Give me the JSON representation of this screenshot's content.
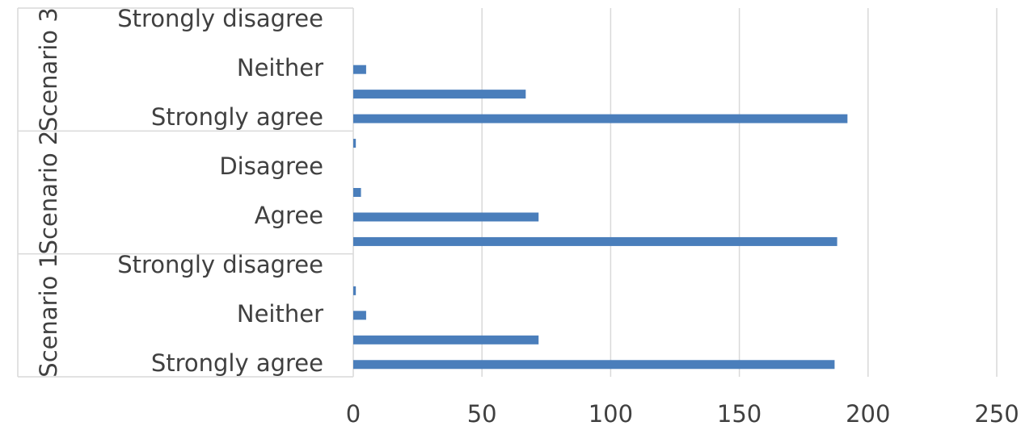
{
  "chart_data": {
    "type": "bar",
    "orientation": "horizontal",
    "groups": [
      "Scenario 3",
      "Scenario 2",
      "Scenario 1"
    ],
    "categories": [
      "Strongly disagree",
      null,
      "Neither",
      null,
      "Strongly agree",
      null,
      "Disagree",
      null,
      "Agree",
      null,
      "Strongly disagree",
      null,
      "Neither",
      null,
      "Strongly agree"
    ],
    "values": [
      0,
      0,
      5,
      67,
      192,
      1,
      0,
      3,
      72,
      188,
      0,
      1,
      5,
      72,
      187
    ],
    "color": "#4a7ebb",
    "xlim": [
      0,
      250
    ],
    "xticks": [
      0,
      50,
      100,
      150,
      200,
      250
    ],
    "grid": true
  }
}
